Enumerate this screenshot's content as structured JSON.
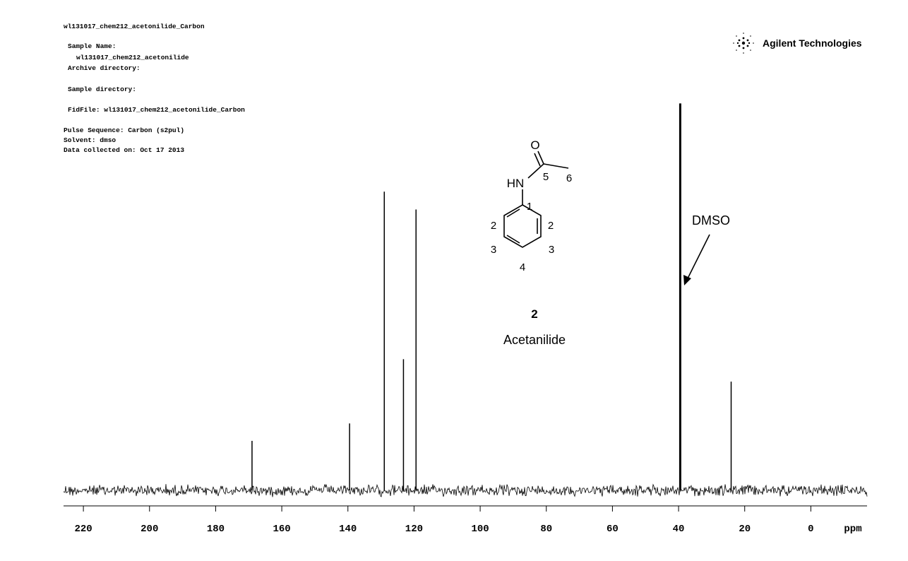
{
  "header": {
    "lines": [
      "wl131017_chem212_acetonilide_Carbon",
      "Sample Name:",
      "wl131017_chem212_acetonilide",
      "Archive directory:",
      "Sample directory:",
      "FidFile: wl131017_chem212_acetonilide_Carbon",
      "Pulse Sequence: Carbon (s2pul)",
      "Solvent: dmso",
      "Data collected on: Oct 17 2013"
    ],
    "logo": "Agilent Technologies"
  },
  "structure": {
    "oxygen": "O",
    "amine": "HN",
    "atom_numbers": [
      "5",
      "6",
      "1",
      "2",
      "2",
      "3",
      "3",
      "4"
    ],
    "compound_number": "2",
    "name": "Acetanilide"
  },
  "chart_data": {
    "type": "spectrum",
    "x": [
      169.0,
      139.5,
      129.0,
      123.2,
      119.4,
      39.5,
      24.1
    ],
    "values": [
      12.8,
      17.3,
      77.2,
      33.9,
      72.6,
      100,
      28.1
    ],
    "color": "#000000",
    "xlim": [
      226,
      -17
    ],
    "ylim": [
      -2,
      103
    ],
    "xticks": [
      220,
      200,
      180,
      160,
      140,
      120,
      100,
      80,
      60,
      40,
      20,
      0
    ],
    "x_label": "ppm",
    "annotation": "DMSO"
  }
}
